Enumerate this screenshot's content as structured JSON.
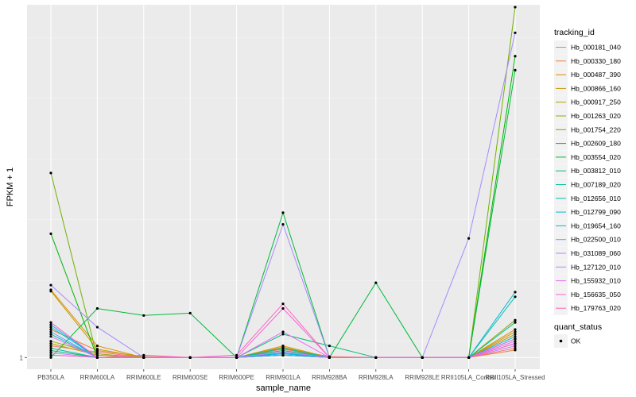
{
  "chart_data": {
    "type": "line",
    "xlabel": "sample_name",
    "ylabel": "FPKM + 1",
    "categories": [
      "PB350LA",
      "RRIM600LA",
      "RRIM600LE",
      "RRIM600SE",
      "RRIM600PE",
      "RRIM901LA",
      "RRIM928BA",
      "RRIM928LA",
      "RRIM928LE",
      "RRII105LA_Control",
      "RRII105LA_Stressed"
    ],
    "y_ticks": [
      {
        "value": 1,
        "label": "1"
      }
    ],
    "ylim": [
      0.75,
      8.55
    ],
    "grid": true,
    "legend_placement": "right",
    "series": [
      {
        "name": "Hb_000181_040",
        "color": "#F8766D",
        "values": [
          1.25,
          1.12,
          1.0,
          1.0,
          1.0,
          1.18,
          1.0,
          1.0,
          1.0,
          1.0,
          1.2
        ]
      },
      {
        "name": "Hb_000330_180",
        "color": "#EC8239",
        "values": [
          1.6,
          1.15,
          1.02,
          1.0,
          1.0,
          1.2,
          1.02,
          1.0,
          1.0,
          1.0,
          1.16
        ]
      },
      {
        "name": "Hb_000487_390",
        "color": "#DB8E00",
        "values": [
          2.45,
          1.25,
          1.0,
          1.0,
          1.0,
          1.25,
          1.0,
          1.0,
          1.0,
          1.0,
          1.55
        ]
      },
      {
        "name": "Hb_000866_160",
        "color": "#C79800",
        "values": [
          2.42,
          1.18,
          1.0,
          1.0,
          1.0,
          1.22,
          1.0,
          1.0,
          1.0,
          1.0,
          1.6
        ]
      },
      {
        "name": "Hb_000917_250",
        "color": "#AFA100",
        "values": [
          1.3,
          1.05,
          1.0,
          1.0,
          1.0,
          1.15,
          1.0,
          1.0,
          1.0,
          1.0,
          1.5
        ]
      },
      {
        "name": "Hb_001263_020",
        "color": "#96A900",
        "values": [
          1.35,
          1.08,
          1.0,
          1.0,
          1.0,
          1.2,
          1.0,
          1.0,
          1.0,
          1.0,
          1.8
        ]
      },
      {
        "name": "Hb_001754_220",
        "color": "#72B000",
        "values": [
          4.95,
          1.0,
          1.0,
          1.0,
          1.0,
          1.05,
          1.0,
          1.0,
          1.0,
          1.0,
          8.5
        ]
      },
      {
        "name": "Hb_002609_180",
        "color": "#00B400",
        "values": [
          3.65,
          1.0,
          1.0,
          1.0,
          1.0,
          1.05,
          1.0,
          1.0,
          1.0,
          1.0,
          7.45
        ]
      },
      {
        "name": "Hb_003554_020",
        "color": "#00BA38",
        "values": [
          1.0,
          2.05,
          1.9,
          1.95,
          1.0,
          4.1,
          1.0,
          2.6,
          1.0,
          1.0,
          7.15
        ]
      },
      {
        "name": "Hb_003812_010",
        "color": "#00BF74",
        "values": [
          1.15,
          1.0,
          1.0,
          1.0,
          1.0,
          1.5,
          1.25,
          1.0,
          1.0,
          1.0,
          1.4
        ]
      },
      {
        "name": "Hb_007189_020",
        "color": "#00C097",
        "values": [
          1.2,
          1.0,
          1.0,
          1.0,
          1.0,
          1.15,
          1.0,
          1.0,
          1.0,
          1.0,
          1.75
        ]
      },
      {
        "name": "Hb_012656_010",
        "color": "#00C0B5",
        "values": [
          1.5,
          1.0,
          1.0,
          1.0,
          1.0,
          1.2,
          1.0,
          1.0,
          1.0,
          1.0,
          2.3
        ]
      },
      {
        "name": "Hb_012799_090",
        "color": "#00BDD0",
        "values": [
          1.65,
          1.0,
          1.0,
          1.0,
          1.0,
          1.1,
          1.0,
          1.0,
          1.0,
          1.0,
          2.4
        ]
      },
      {
        "name": "Hb_019654_160",
        "color": "#00B5EA",
        "values": [
          1.7,
          1.0,
          1.0,
          1.0,
          1.0,
          1.08,
          1.0,
          1.0,
          1.0,
          1.0,
          1.45
        ]
      },
      {
        "name": "Hb_022500_010",
        "color": "#619CFF",
        "values": [
          1.55,
          1.0,
          1.0,
          1.0,
          1.0,
          1.05,
          1.0,
          1.0,
          1.0,
          1.0,
          1.3
        ]
      },
      {
        "name": "Hb_031089_060",
        "color": "#A58AFF",
        "values": [
          2.55,
          1.65,
          1.0,
          1.0,
          1.0,
          3.85,
          1.0,
          1.0,
          1.0,
          3.55,
          7.95
        ]
      },
      {
        "name": "Hb_127120_010",
        "color": "#C77CFF",
        "values": [
          1.1,
          1.0,
          1.0,
          1.0,
          1.0,
          1.12,
          1.0,
          1.0,
          1.0,
          1.0,
          1.25
        ]
      },
      {
        "name": "Hb_155932_010",
        "color": "#E76BF3",
        "values": [
          1.45,
          1.0,
          1.0,
          1.0,
          1.0,
          1.55,
          1.0,
          1.0,
          1.0,
          1.0,
          1.35
        ]
      },
      {
        "name": "Hb_156635_050",
        "color": "#FA62DB",
        "values": [
          1.75,
          1.0,
          1.0,
          1.0,
          1.0,
          2.05,
          1.0,
          1.0,
          1.0,
          1.0,
          1.4
        ]
      },
      {
        "name": "Hb_179763_020",
        "color": "#FF62BC",
        "values": [
          1.05,
          1.0,
          1.05,
          1.0,
          1.05,
          2.15,
          1.0,
          1.0,
          1.0,
          1.0,
          1.3
        ]
      }
    ],
    "legends": [
      {
        "title": "tracking_id",
        "kind": "lines"
      },
      {
        "title": "quant_status",
        "kind": "points",
        "entries": [
          "OK"
        ]
      }
    ]
  }
}
